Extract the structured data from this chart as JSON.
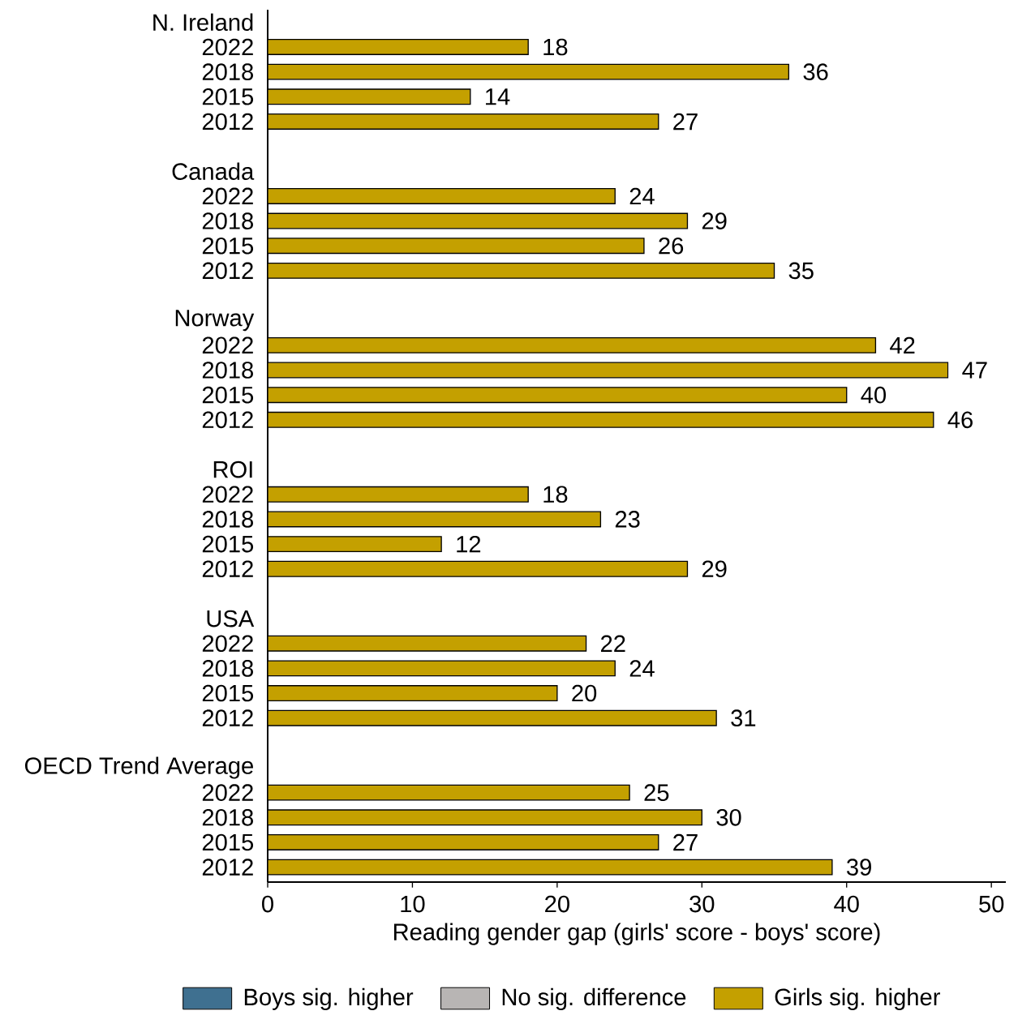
{
  "chart_data": {
    "type": "bar",
    "orientation": "horizontal",
    "categories": [
      "N. Ireland",
      "2022",
      "2018",
      "2015",
      "2012",
      null,
      "Canada",
      "2022",
      "2018",
      "2015",
      "2012",
      null,
      "Norway",
      "2022",
      "2018",
      "2015",
      "2012",
      null,
      "ROI",
      "2022",
      "2018",
      "2015",
      "2012",
      null,
      "USA",
      "2022",
      "2018",
      "2015",
      "2012",
      null,
      "OECD Trend Average",
      "2022",
      "2018",
      "2015",
      "2012"
    ],
    "series": [
      {
        "name": "Boys sig. higher",
        "color": "#3f7090",
        "values": [
          null,
          null,
          null,
          null,
          null,
          null,
          null,
          null,
          null,
          null,
          null,
          null,
          null,
          null,
          null,
          null,
          null,
          null,
          null,
          null,
          null,
          null,
          null,
          null,
          null,
          null,
          null,
          null,
          null,
          null,
          null,
          null,
          null,
          null,
          null
        ]
      },
      {
        "name": "No sig. difference",
        "color": "#b8b5b4",
        "values": [
          null,
          null,
          null,
          null,
          null,
          null,
          null,
          null,
          null,
          null,
          null,
          null,
          null,
          null,
          null,
          null,
          null,
          null,
          null,
          null,
          null,
          null,
          null,
          null,
          null,
          null,
          null,
          null,
          null,
          null,
          null,
          null,
          null,
          null,
          null
        ]
      },
      {
        "name": "Girls sig. higher",
        "color": "#c4a000",
        "values": [
          null,
          18,
          36,
          14,
          27,
          null,
          null,
          24,
          29,
          26,
          35,
          null,
          null,
          42,
          47,
          40,
          46,
          null,
          null,
          18,
          23,
          12,
          29,
          null,
          null,
          22,
          24,
          20,
          31,
          null,
          null,
          25,
          30,
          27,
          39
        ]
      }
    ],
    "xlabel": "Reading gender gap (girls' score - boys' score)",
    "xlim": [
      0,
      51
    ],
    "xticks": [
      0,
      10,
      20,
      30,
      40,
      50
    ],
    "data_labels": true,
    "legend": "bottom",
    "grid": false
  }
}
